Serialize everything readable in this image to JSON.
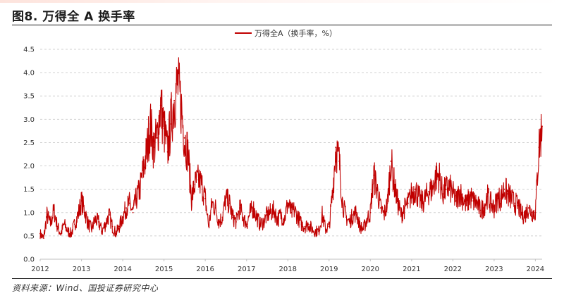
{
  "figure": {
    "title": "图8. 万得全 A 换手率",
    "source": "资料来源：Wind、国投证券研究中心"
  },
  "colors": {
    "series": "#c00000",
    "grid": "#d0d0d0",
    "axis": "#bfbfbf",
    "text": "#333333"
  },
  "chart_data": {
    "type": "line",
    "title": "",
    "xlabel": "",
    "ylabel": "",
    "ylim": [
      0,
      4.5
    ],
    "xlim": [
      "2012-01-01",
      "2024-03-01"
    ],
    "x_tick_labels": [
      "2012",
      "2013",
      "2014",
      "2015",
      "2016",
      "2017",
      "2018",
      "2019",
      "2020",
      "2021",
      "2022",
      "2023",
      "2024"
    ],
    "y_tick_labels": [
      "0.0",
      "0.5",
      "1.0",
      "1.5",
      "2.0",
      "2.5",
      "3.0",
      "3.5",
      "4.0",
      "4.5"
    ],
    "grid": "horizontal dashed",
    "legend": "top-center",
    "series": [
      {
        "name": "万得全A（换手率，%）",
        "points": [
          [
            "2012-01",
            0.55
          ],
          [
            "2012-02",
            0.45
          ],
          [
            "2012-03",
            0.95
          ],
          [
            "2012-04",
            0.75
          ],
          [
            "2012-05",
            1.05
          ],
          [
            "2012-06",
            0.7
          ],
          [
            "2012-07",
            0.55
          ],
          [
            "2012-08",
            0.75
          ],
          [
            "2012-09",
            0.6
          ],
          [
            "2012-10",
            0.55
          ],
          [
            "2012-11",
            0.75
          ],
          [
            "2012-12",
            0.95
          ],
          [
            "2013-01",
            1.25
          ],
          [
            "2013-02",
            1.0
          ],
          [
            "2013-03",
            0.75
          ],
          [
            "2013-04",
            0.65
          ],
          [
            "2013-05",
            0.85
          ],
          [
            "2013-06",
            0.8
          ],
          [
            "2013-07",
            0.6
          ],
          [
            "2013-08",
            0.75
          ],
          [
            "2013-09",
            0.95
          ],
          [
            "2013-10",
            0.7
          ],
          [
            "2013-11",
            0.55
          ],
          [
            "2013-12",
            0.7
          ],
          [
            "2014-01",
            0.9
          ],
          [
            "2014-02",
            1.1
          ],
          [
            "2014-03",
            1.2
          ],
          [
            "2014-04",
            1.0
          ],
          [
            "2014-05",
            1.3
          ],
          [
            "2014-06",
            1.5
          ],
          [
            "2014-07",
            1.9
          ],
          [
            "2014-08",
            2.3
          ],
          [
            "2014-09",
            2.9
          ],
          [
            "2014-10",
            2.4
          ],
          [
            "2014-11",
            2.6
          ],
          [
            "2014-12",
            3.3
          ],
          [
            "2015-01",
            2.8
          ],
          [
            "2015-02",
            2.3
          ],
          [
            "2015-03",
            2.9
          ],
          [
            "2015-04",
            3.4
          ],
          [
            "2015-05",
            3.75
          ],
          [
            "2015-06",
            3.3
          ],
          [
            "2015-07",
            2.6
          ],
          [
            "2015-08",
            2.3
          ],
          [
            "2015-09",
            1.3
          ],
          [
            "2015-10",
            1.6
          ],
          [
            "2015-11",
            1.7
          ],
          [
            "2015-12",
            1.6
          ],
          [
            "2016-01",
            1.3
          ],
          [
            "2016-02",
            0.7
          ],
          [
            "2016-03",
            1.2
          ],
          [
            "2016-04",
            1.1
          ],
          [
            "2016-05",
            0.8
          ],
          [
            "2016-06",
            0.9
          ],
          [
            "2016-07",
            1.3
          ],
          [
            "2016-08",
            1.2
          ],
          [
            "2016-09",
            0.9
          ],
          [
            "2016-10",
            0.8
          ],
          [
            "2016-11",
            1.1
          ],
          [
            "2016-12",
            0.9
          ],
          [
            "2017-01",
            0.75
          ],
          [
            "2017-02",
            1.0
          ],
          [
            "2017-03",
            1.1
          ],
          [
            "2017-04",
            0.9
          ],
          [
            "2017-05",
            0.75
          ],
          [
            "2017-06",
            0.8
          ],
          [
            "2017-07",
            0.95
          ],
          [
            "2017-08",
            1.0
          ],
          [
            "2017-09",
            1.05
          ],
          [
            "2017-10",
            0.85
          ],
          [
            "2017-11",
            0.95
          ],
          [
            "2017-12",
            0.85
          ],
          [
            "2018-01",
            1.2
          ],
          [
            "2018-02",
            1.0
          ],
          [
            "2018-03",
            1.05
          ],
          [
            "2018-04",
            0.9
          ],
          [
            "2018-05",
            0.75
          ],
          [
            "2018-06",
            0.7
          ],
          [
            "2018-07",
            0.75
          ],
          [
            "2018-08",
            0.65
          ],
          [
            "2018-09",
            0.6
          ],
          [
            "2018-10",
            0.6
          ],
          [
            "2018-11",
            0.95
          ],
          [
            "2018-12",
            0.65
          ],
          [
            "2019-01",
            0.7
          ],
          [
            "2019-02",
            1.4
          ],
          [
            "2019-03",
            2.4
          ],
          [
            "2019-04",
            2.1
          ],
          [
            "2019-05",
            1.2
          ],
          [
            "2019-06",
            0.9
          ],
          [
            "2019-07",
            0.8
          ],
          [
            "2019-08",
            0.95
          ],
          [
            "2019-09",
            1.0
          ],
          [
            "2019-10",
            0.7
          ],
          [
            "2019-11",
            0.65
          ],
          [
            "2019-12",
            0.85
          ],
          [
            "2020-01",
            1.0
          ],
          [
            "2020-02",
            1.8
          ],
          [
            "2020-03",
            1.5
          ],
          [
            "2020-04",
            1.1
          ],
          [
            "2020-05",
            0.95
          ],
          [
            "2020-06",
            1.2
          ],
          [
            "2020-07",
            2.1
          ],
          [
            "2020-08",
            1.6
          ],
          [
            "2020-09",
            1.2
          ],
          [
            "2020-10",
            0.95
          ],
          [
            "2020-11",
            1.1
          ],
          [
            "2020-12",
            1.2
          ],
          [
            "2021-01",
            1.4
          ],
          [
            "2021-02",
            1.5
          ],
          [
            "2021-03",
            1.35
          ],
          [
            "2021-04",
            1.2
          ],
          [
            "2021-05",
            1.3
          ],
          [
            "2021-06",
            1.45
          ],
          [
            "2021-07",
            1.5
          ],
          [
            "2021-08",
            1.75
          ],
          [
            "2021-09",
            1.8
          ],
          [
            "2021-10",
            1.4
          ],
          [
            "2021-11",
            1.5
          ],
          [
            "2021-12",
            1.55
          ],
          [
            "2022-01",
            1.4
          ],
          [
            "2022-02",
            1.25
          ],
          [
            "2022-03",
            1.45
          ],
          [
            "2022-04",
            1.3
          ],
          [
            "2022-05",
            1.15
          ],
          [
            "2022-06",
            1.35
          ],
          [
            "2022-07",
            1.25
          ],
          [
            "2022-08",
            1.2
          ],
          [
            "2022-09",
            1.05
          ],
          [
            "2022-10",
            1.1
          ],
          [
            "2022-11",
            1.35
          ],
          [
            "2022-12",
            1.2
          ],
          [
            "2023-01",
            1.1
          ],
          [
            "2023-02",
            1.3
          ],
          [
            "2023-03",
            1.3
          ],
          [
            "2023-04",
            1.5
          ],
          [
            "2023-05",
            1.4
          ],
          [
            "2023-06",
            1.3
          ],
          [
            "2023-07",
            1.2
          ],
          [
            "2023-08",
            1.15
          ],
          [
            "2023-09",
            0.95
          ],
          [
            "2023-10",
            0.95
          ],
          [
            "2023-11",
            1.1
          ],
          [
            "2023-12",
            1.0
          ],
          [
            "2024-01",
            1.0
          ],
          [
            "2024-02",
            2.4
          ],
          [
            "2024-03",
            2.85
          ]
        ]
      }
    ]
  }
}
